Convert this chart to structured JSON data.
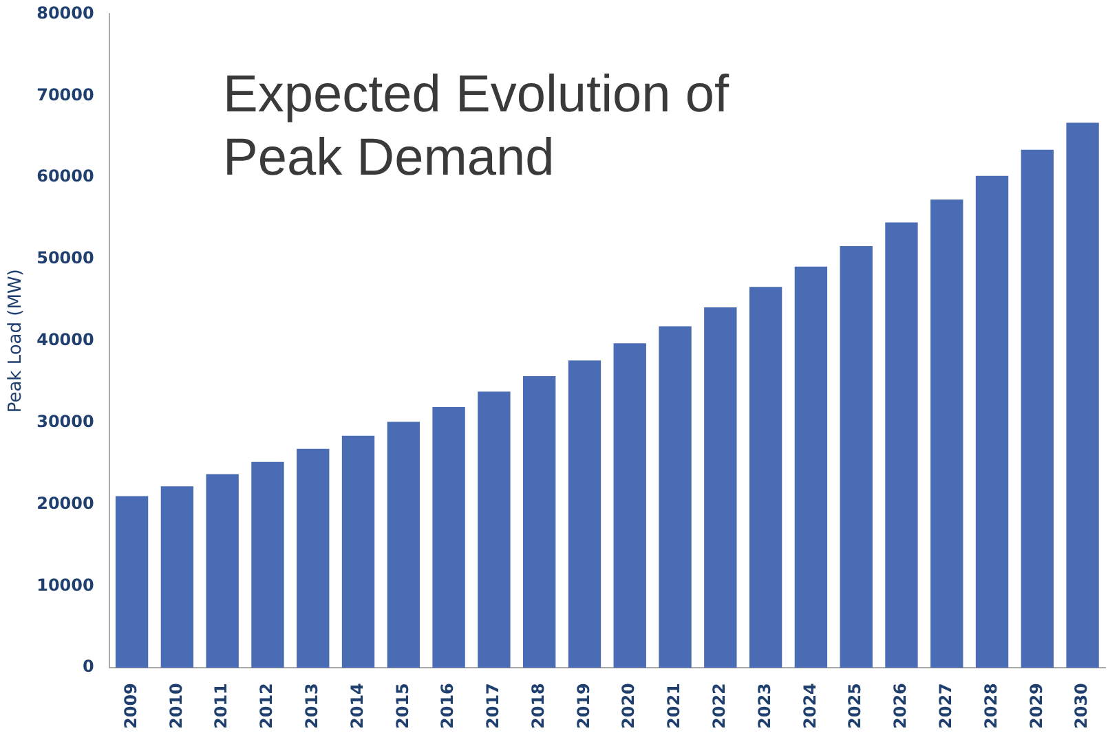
{
  "chart_data": {
    "type": "bar",
    "title": "Expected Evolution of\nPeak Demand",
    "ylabel": "Peak Load (MW)",
    "categories": [
      "2009",
      "2010",
      "2011",
      "2012",
      "2013",
      "2014",
      "2015",
      "2016",
      "2017",
      "2018",
      "2019",
      "2020",
      "2021",
      "2022",
      "2023",
      "2024",
      "2025",
      "2026",
      "2027",
      "2028",
      "2029",
      "2030"
    ],
    "values": [
      21000,
      22200,
      23700,
      25200,
      26800,
      28400,
      30100,
      31900,
      33800,
      35700,
      37600,
      39700,
      41800,
      44100,
      46600,
      49100,
      51600,
      54500,
      57300,
      60200,
      63400,
      66700
    ],
    "color": "#4a6cb5",
    "ylim": [
      0,
      80000
    ],
    "yticks": [
      0,
      10000,
      20000,
      30000,
      40000,
      50000,
      60000,
      70000,
      80000
    ],
    "grid": false,
    "legend": false
  }
}
